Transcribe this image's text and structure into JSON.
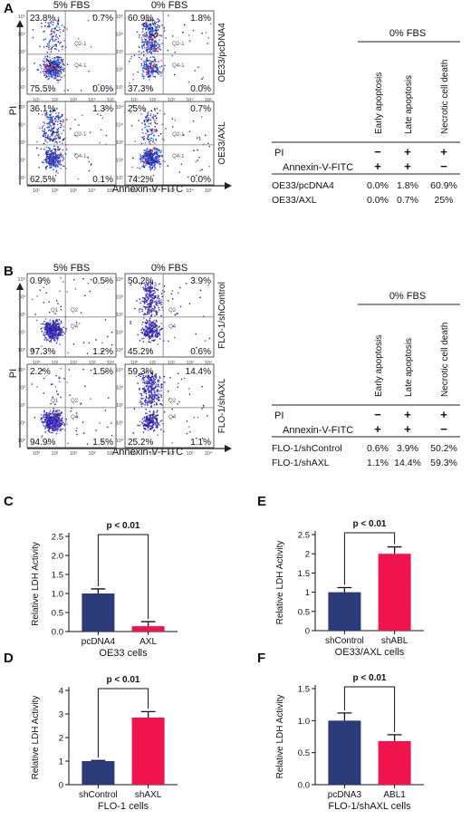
{
  "chart_data": [
    {
      "type": "table",
      "panel": "A",
      "flow": {
        "col_titles": [
          "5% FBS",
          "0% FBS"
        ],
        "row_titles": [
          "OE33/pcDNA4",
          "OE33/AXL"
        ],
        "gate_labels": [
          "Q2-1",
          "Q4-1"
        ],
        "xlabel": "Annexin-V-FITC",
        "ylabel": "PI",
        "ticks": [
          "10¹",
          "10²",
          "10³",
          "10⁴",
          "10⁵"
        ],
        "colors": [
          "#1f3bd6",
          "#2f7be0",
          "#e23b5a",
          "#1a1a1a"
        ],
        "plots": [
          {
            "ul": "23.8%",
            "ur": "0.7%",
            "ll": "75.5%",
            "lr": "0.0%"
          },
          {
            "ul": "60.9%",
            "ur": "1.8%",
            "ll": "37.3%",
            "lr": "0.0%"
          },
          {
            "ul": "36.1%",
            "ur": "1.3%",
            "ll": "62.5%",
            "lr": "0.1%"
          },
          {
            "ul": "25%",
            "ur": "0.7%",
            "ll": "74.2%",
            "lr": "0.0%"
          }
        ]
      },
      "table": {
        "header": "0% FBS",
        "columns": [
          "Early apoptosis",
          "Late apoptosis",
          "Necrotic cell death"
        ],
        "marker_rows": [
          {
            "label": "PI",
            "values": [
              "−",
              "+",
              "+"
            ]
          },
          {
            "label": "Annexin-V-FITC",
            "values": [
              "+",
              "+",
              "−"
            ]
          }
        ],
        "rows": [
          {
            "label": "OE33/pcDNA4",
            "values": [
              "0.0%",
              "1.8%",
              "60.9%"
            ]
          },
          {
            "label": "OE33/AXL",
            "values": [
              "0.0%",
              "0.7%",
              "25%"
            ]
          }
        ]
      }
    },
    {
      "type": "table",
      "panel": "B",
      "flow": {
        "col_titles": [
          "5% FBS",
          "0% FBS"
        ],
        "row_titles": [
          "FLO-1/shControl",
          "FLO-1/shAXL"
        ],
        "gate_labels": [
          "Q1",
          "Q2",
          "Q3",
          "Q4"
        ],
        "xlabel": "Annexin-V-FITC",
        "ylabel": "PI",
        "ticks": [
          "10⁰",
          "10¹",
          "10²",
          "10³",
          "10⁴"
        ],
        "colors": [
          "#2a1fa8",
          "#6b5fd6"
        ],
        "plots": [
          {
            "ul": "0.9%",
            "ur": "0.5%",
            "ll": "97.3%",
            "lr": "1.2%"
          },
          {
            "ul": "50.2%",
            "ur": "3.9%",
            "ll": "45.2%",
            "lr": "0.6%"
          },
          {
            "ul": "2.2%",
            "ur": "1.5%",
            "ll": "94.9%",
            "lr": "1.5%"
          },
          {
            "ul": "59.3%",
            "ur": "14.4%",
            "ll": "25.2%",
            "lr": "1.1%"
          }
        ]
      },
      "table": {
        "header": "0% FBS",
        "columns": [
          "Early apoptosis",
          "Late apoptosis",
          "Necrotic cell death"
        ],
        "marker_rows": [
          {
            "label": "PI",
            "values": [
              "−",
              "+",
              "+"
            ]
          },
          {
            "label": "Annexin-V-FITC",
            "values": [
              "+",
              "+",
              "−"
            ]
          }
        ],
        "rows": [
          {
            "label": "FLO-1/shControl",
            "values": [
              "0.6%",
              "3.9%",
              "50.2%"
            ]
          },
          {
            "label": "FLO-1/shAXL",
            "values": [
              "1.1%",
              "14.4%",
              "59.3%"
            ]
          }
        ]
      }
    },
    {
      "type": "bar",
      "panel": "C",
      "categories": [
        "pcDNA4",
        "AXL"
      ],
      "values": [
        1.0,
        0.14
      ],
      "errors": [
        0.12,
        0.12
      ],
      "colors": [
        "#2b3a78",
        "#f0144e"
      ],
      "xlabel": "OE33 cells",
      "ylabel": "Relative LDH Activity",
      "ylim": [
        0,
        2.5
      ],
      "yticks": [
        "0.0",
        "0.5",
        "1.0",
        "1.5",
        "2.0",
        "2.5"
      ],
      "annotation": "p < 0.01"
    },
    {
      "type": "bar",
      "panel": "D",
      "categories": [
        "shControl",
        "shAXL"
      ],
      "values": [
        1.0,
        2.85
      ],
      "errors": [
        0.03,
        0.25
      ],
      "colors": [
        "#2b3a78",
        "#f0144e"
      ],
      "xlabel": "FLO-1 cells",
      "ylabel": "Relative LDH Activity",
      "ylim": [
        0,
        4
      ],
      "yticks": [
        "0",
        "1",
        "2",
        "3",
        "4"
      ],
      "annotation": "p < 0.01"
    },
    {
      "type": "bar",
      "panel": "E",
      "categories": [
        "shControl",
        "shABL"
      ],
      "values": [
        1.0,
        2.0
      ],
      "errors": [
        0.12,
        0.18
      ],
      "colors": [
        "#2b3a78",
        "#f0144e"
      ],
      "xlabel": "OE33/AXL cells",
      "ylabel": "Relative LDH Activity",
      "ylim": [
        0,
        2.5
      ],
      "yticks": [
        "0",
        "0.5",
        "1",
        "1.5",
        "2",
        "2.5"
      ],
      "annotation": "p < 0.01"
    },
    {
      "type": "bar",
      "panel": "F",
      "categories": [
        "pcDNA3",
        "ABL1"
      ],
      "values": [
        1.0,
        0.68
      ],
      "errors": [
        0.12,
        0.1
      ],
      "colors": [
        "#2b3a78",
        "#f0144e"
      ],
      "xlabel": "FLO-1/shAXL cells",
      "ylabel": "Relative LDH Activity",
      "ylim": [
        0,
        1.5
      ],
      "yticks": [
        "0.0",
        "0.5",
        "1.0",
        "1.5"
      ],
      "annotation": "p < 0.01"
    }
  ]
}
